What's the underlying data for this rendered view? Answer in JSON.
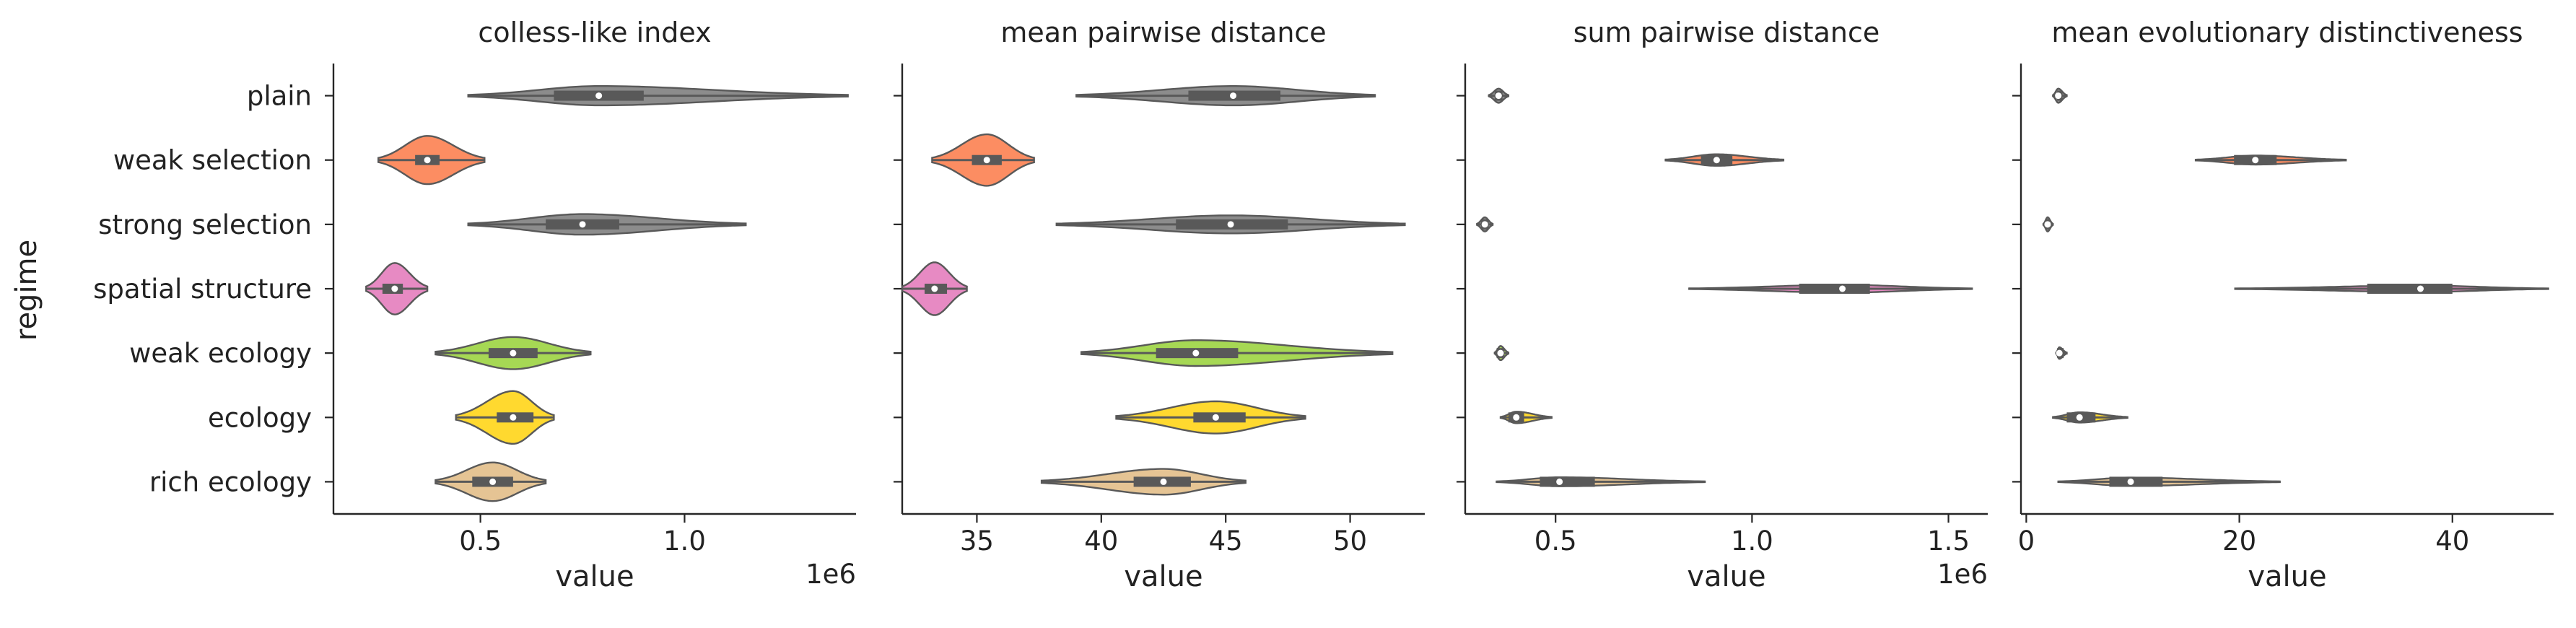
{
  "figure": {
    "ylabel": "regime",
    "xlabel": "value"
  },
  "regimes": [
    "plain",
    "weak selection",
    "strong selection",
    "spatial structure",
    "weak ecology",
    "ecology",
    "rich ecology"
  ],
  "regime_colors": [
    "#8c8c8c",
    "#fc8d62",
    "#8c8c8c",
    "#e78ac3",
    "#a6d854",
    "#ffd92f",
    "#e5c494"
  ],
  "chart_data": [
    {
      "type": "violin",
      "title": "colless-like index",
      "xlabel": "value",
      "offset_label": "1e6",
      "xlim": [
        0.14,
        1.42
      ],
      "xticks": [
        0.5,
        1.0
      ],
      "xtick_labels": [
        "0.5",
        "1.0"
      ],
      "series": [
        {
          "name": "plain",
          "min": 0.47,
          "q1": 0.68,
          "median": 0.79,
          "q3": 0.9,
          "max": 1.4,
          "width": 0.3
        },
        {
          "name": "weak selection",
          "min": 0.25,
          "q1": 0.34,
          "median": 0.37,
          "q3": 0.4,
          "max": 0.51,
          "width": 0.75
        },
        {
          "name": "strong selection",
          "min": 0.47,
          "q1": 0.66,
          "median": 0.75,
          "q3": 0.84,
          "max": 1.15,
          "width": 0.32
        },
        {
          "name": "spatial structure",
          "min": 0.22,
          "q1": 0.26,
          "median": 0.29,
          "q3": 0.31,
          "max": 0.37,
          "width": 0.8
        },
        {
          "name": "weak ecology",
          "min": 0.39,
          "q1": 0.52,
          "median": 0.58,
          "q3": 0.64,
          "max": 0.77,
          "width": 0.5
        },
        {
          "name": "ecology",
          "min": 0.44,
          "q1": 0.54,
          "median": 0.58,
          "q3": 0.63,
          "max": 0.68,
          "width": 0.82
        },
        {
          "name": "rich ecology",
          "min": 0.39,
          "q1": 0.48,
          "median": 0.53,
          "q3": 0.58,
          "max": 0.66,
          "width": 0.6
        }
      ]
    },
    {
      "type": "violin",
      "title": "mean pairwise distance",
      "xlabel": "value",
      "xlim": [
        32,
        53
      ],
      "xticks": [
        35,
        40,
        45,
        50
      ],
      "xtick_labels": [
        "35",
        "40",
        "45",
        "50"
      ],
      "series": [
        {
          "name": "plain",
          "min": 39,
          "q1": 43.5,
          "median": 45.3,
          "q3": 47.2,
          "max": 51,
          "width": 0.3
        },
        {
          "name": "weak selection",
          "min": 33.2,
          "q1": 34.8,
          "median": 35.4,
          "q3": 36.0,
          "max": 37.3,
          "width": 0.8
        },
        {
          "name": "strong selection",
          "min": 38.2,
          "q1": 43,
          "median": 45.2,
          "q3": 47.5,
          "max": 52.2,
          "width": 0.28
        },
        {
          "name": "spatial structure",
          "min": 32.0,
          "q1": 32.9,
          "median": 33.3,
          "q3": 33.8,
          "max": 34.6,
          "width": 0.82
        },
        {
          "name": "weak ecology",
          "min": 39.2,
          "q1": 42.2,
          "median": 43.8,
          "q3": 45.5,
          "max": 51.7,
          "width": 0.4
        },
        {
          "name": "ecology",
          "min": 40.6,
          "q1": 43.7,
          "median": 44.6,
          "q3": 45.8,
          "max": 48.2,
          "width": 0.5
        },
        {
          "name": "rich ecology",
          "min": 37.6,
          "q1": 41.3,
          "median": 42.5,
          "q3": 43.6,
          "max": 45.8,
          "width": 0.4
        }
      ]
    },
    {
      "type": "violin",
      "title": "sum pairwise distance",
      "xlabel": "value",
      "offset_label": "1e6",
      "xlim": [
        0.27,
        1.6
      ],
      "xticks": [
        0.5,
        1.0,
        1.5
      ],
      "xtick_labels": [
        "0.5",
        "1.0",
        "1.5"
      ],
      "series": [
        {
          "name": "plain",
          "min": 0.33,
          "q1": 0.345,
          "median": 0.355,
          "q3": 0.365,
          "max": 0.38,
          "width": 0.22
        },
        {
          "name": "weak selection",
          "min": 0.78,
          "q1": 0.87,
          "median": 0.91,
          "q3": 0.95,
          "max": 1.08,
          "width": 0.18
        },
        {
          "name": "strong selection",
          "min": 0.3,
          "q1": 0.31,
          "median": 0.32,
          "q3": 0.33,
          "max": 0.34,
          "width": 0.22
        },
        {
          "name": "spatial structure",
          "min": 0.84,
          "q1": 1.12,
          "median": 1.23,
          "q3": 1.3,
          "max": 1.56,
          "width": 0.12
        },
        {
          "name": "weak ecology",
          "min": 0.345,
          "q1": 0.35,
          "median": 0.36,
          "q3": 0.37,
          "max": 0.38,
          "width": 0.22
        },
        {
          "name": "ecology",
          "min": 0.36,
          "q1": 0.38,
          "median": 0.4,
          "q3": 0.42,
          "max": 0.49,
          "width": 0.18
        },
        {
          "name": "rich ecology",
          "min": 0.35,
          "q1": 0.46,
          "median": 0.51,
          "q3": 0.6,
          "max": 0.88,
          "width": 0.14
        }
      ]
    },
    {
      "type": "violin",
      "title": "mean evolutionary distinctiveness",
      "xlabel": "value",
      "xlim": [
        -0.5,
        49.5
      ],
      "xticks": [
        0,
        20,
        40
      ],
      "xtick_labels": [
        "0",
        "20",
        "40"
      ],
      "series": [
        {
          "name": "plain",
          "min": 2.5,
          "q1": 2.9,
          "median": 3.0,
          "q3": 3.4,
          "max": 3.8,
          "width": 0.22
        },
        {
          "name": "weak selection",
          "min": 15.9,
          "q1": 19.5,
          "median": 21.5,
          "q3": 23.5,
          "max": 30,
          "width": 0.14
        },
        {
          "name": "strong selection",
          "min": 1.6,
          "q1": 1.8,
          "median": 2.0,
          "q3": 2.2,
          "max": 2.5,
          "width": 0.22
        },
        {
          "name": "spatial structure",
          "min": 19.6,
          "q1": 32.0,
          "median": 37.0,
          "q3": 40.0,
          "max": 49.0,
          "width": 0.1
        },
        {
          "name": "weak ecology",
          "min": 2.8,
          "q1": 2.9,
          "median": 3.1,
          "q3": 3.5,
          "max": 3.8,
          "width": 0.18
        },
        {
          "name": "ecology",
          "min": 2.5,
          "q1": 3.8,
          "median": 5.0,
          "q3": 6.5,
          "max": 9.5,
          "width": 0.16
        },
        {
          "name": "rich ecology",
          "min": 3.0,
          "q1": 7.8,
          "median": 9.8,
          "q3": 12.8,
          "max": 23.8,
          "width": 0.13
        }
      ]
    }
  ]
}
